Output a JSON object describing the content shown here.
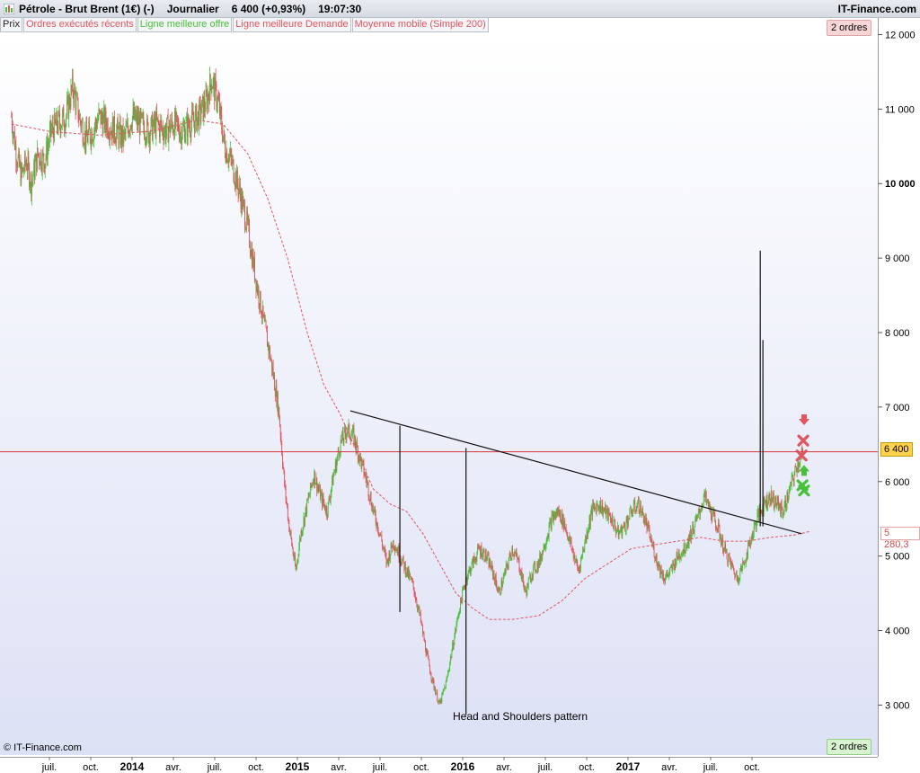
{
  "header": {
    "instrument": "Pétrole - Brut Brent (1€) (-)",
    "timeframe": "Journalier",
    "last_price": "6 400 (+0,93%)",
    "time": "19:07:30",
    "brand": "IT-Finance.com"
  },
  "legend": [
    {
      "label": "Prix",
      "color": "#222222"
    },
    {
      "label": "Ordres exécutés récents",
      "color": "#e05560"
    },
    {
      "label": "Ligne meilleure offre",
      "color": "#48c13a"
    },
    {
      "label": "Ligne meilleure Demande",
      "color": "#e05560"
    },
    {
      "label": "Moyenne mobile (Simple 200)",
      "color": "#e05560"
    }
  ],
  "badges": {
    "top": "2 ordres",
    "bottom": "2 ordres"
  },
  "copyright": "© IT-Finance.com",
  "annotation": "Head and Shoulders pattern",
  "price_flag": "6 400",
  "ma_flag": "5 280,3",
  "colors": {
    "up": "#48c13a",
    "down": "#e05560",
    "ma": "#e05560",
    "price_line": "#d9363e",
    "trend": "#111111"
  },
  "icons": {
    "chart": "chart-icon",
    "arrow_down": "arrow-down-icon",
    "order_x": "x-marker-icon",
    "arrow_up": "arrow-up-icon"
  },
  "chart_data": {
    "type": "candlestick",
    "y_axis": {
      "ticks": [
        "3 000",
        "4 000",
        "5 000",
        "6 000",
        "7 000",
        "8 000",
        "9 000",
        "10 000",
        "11 000",
        "12 000"
      ],
      "tick_values": [
        3000,
        4000,
        5000,
        6000,
        7000,
        8000,
        9000,
        10000,
        11000,
        12000
      ],
      "bold": [
        10000
      ],
      "range": [
        2450,
        12030
      ]
    },
    "x_axis": {
      "labels": [
        {
          "t": 0.0,
          "text": "juil."
        },
        {
          "t": 0.25,
          "text": "oct."
        },
        {
          "t": 0.5,
          "text": "2014",
          "bold": true
        },
        {
          "t": 0.75,
          "text": "avr."
        },
        {
          "t": 1.0,
          "text": "juil."
        },
        {
          "t": 1.25,
          "text": "oct."
        },
        {
          "t": 1.5,
          "text": "2015",
          "bold": true
        },
        {
          "t": 1.75,
          "text": "avr."
        },
        {
          "t": 2.0,
          "text": "juil."
        },
        {
          "t": 2.25,
          "text": "oct."
        },
        {
          "t": 2.5,
          "text": "2016",
          "bold": true
        },
        {
          "t": 2.75,
          "text": "avr."
        },
        {
          "t": 3.0,
          "text": "juil."
        },
        {
          "t": 3.25,
          "text": "oct."
        },
        {
          "t": 3.5,
          "text": "2017",
          "bold": true
        },
        {
          "t": 3.75,
          "text": "avr."
        },
        {
          "t": 4.0,
          "text": "juil."
        },
        {
          "t": 4.25,
          "text": "oct."
        }
      ]
    },
    "close_path": [
      [
        -0.23,
        10900
      ],
      [
        -0.2,
        10400
      ],
      [
        -0.17,
        10100
      ],
      [
        -0.14,
        10300
      ],
      [
        -0.11,
        10000
      ],
      [
        -0.07,
        10400
      ],
      [
        -0.03,
        10300
      ],
      [
        0.01,
        10700
      ],
      [
        0.05,
        10800
      ],
      [
        0.1,
        10900
      ],
      [
        0.14,
        11300
      ],
      [
        0.18,
        10900
      ],
      [
        0.22,
        10600
      ],
      [
        0.26,
        10700
      ],
      [
        0.3,
        10900
      ],
      [
        0.35,
        10800
      ],
      [
        0.4,
        10700
      ],
      [
        0.45,
        10600
      ],
      [
        0.5,
        10900
      ],
      [
        0.55,
        10800
      ],
      [
        0.6,
        10700
      ],
      [
        0.65,
        10800
      ],
      [
        0.7,
        10700
      ],
      [
        0.75,
        10800
      ],
      [
        0.8,
        10700
      ],
      [
        0.85,
        10800
      ],
      [
        0.9,
        10900
      ],
      [
        0.95,
        11100
      ],
      [
        0.98,
        11400
      ],
      [
        1.02,
        11100
      ],
      [
        1.06,
        10500
      ],
      [
        1.1,
        10300
      ],
      [
        1.15,
        9900
      ],
      [
        1.2,
        9400
      ],
      [
        1.25,
        8700
      ],
      [
        1.3,
        8100
      ],
      [
        1.35,
        7500
      ],
      [
        1.39,
        6900
      ],
      [
        1.42,
        6000
      ],
      [
        1.45,
        5400
      ],
      [
        1.49,
        4800
      ],
      [
        1.52,
        5300
      ],
      [
        1.56,
        5700
      ],
      [
        1.6,
        6100
      ],
      [
        1.64,
        5800
      ],
      [
        1.68,
        5600
      ],
      [
        1.72,
        6100
      ],
      [
        1.76,
        6500
      ],
      [
        1.8,
        6700
      ],
      [
        1.84,
        6600
      ],
      [
        1.88,
        6300
      ],
      [
        1.92,
        6000
      ],
      [
        1.96,
        5600
      ],
      [
        2.0,
        5300
      ],
      [
        2.04,
        4900
      ],
      [
        2.08,
        5200
      ],
      [
        2.12,
        5000
      ],
      [
        2.16,
        4800
      ],
      [
        2.2,
        4600
      ],
      [
        2.24,
        4200
      ],
      [
        2.28,
        3700
      ],
      [
        2.32,
        3300
      ],
      [
        2.36,
        3000
      ],
      [
        2.4,
        3300
      ],
      [
        2.44,
        3800
      ],
      [
        2.48,
        4300
      ],
      [
        2.52,
        4700
      ],
      [
        2.56,
        4900
      ],
      [
        2.6,
        5100
      ],
      [
        2.64,
        5000
      ],
      [
        2.68,
        4800
      ],
      [
        2.72,
        4500
      ],
      [
        2.76,
        4800
      ],
      [
        2.8,
        5100
      ],
      [
        2.84,
        4900
      ],
      [
        2.88,
        4500
      ],
      [
        2.92,
        4800
      ],
      [
        2.96,
        4900
      ],
      [
        3.0,
        5200
      ],
      [
        3.04,
        5500
      ],
      [
        3.08,
        5600
      ],
      [
        3.12,
        5400
      ],
      [
        3.16,
        5100
      ],
      [
        3.2,
        4800
      ],
      [
        3.24,
        5200
      ],
      [
        3.28,
        5600
      ],
      [
        3.32,
        5700
      ],
      [
        3.36,
        5600
      ],
      [
        3.4,
        5500
      ],
      [
        3.44,
        5300
      ],
      [
        3.48,
        5400
      ],
      [
        3.52,
        5600
      ],
      [
        3.56,
        5700
      ],
      [
        3.6,
        5500
      ],
      [
        3.64,
        5200
      ],
      [
        3.68,
        4900
      ],
      [
        3.72,
        4700
      ],
      [
        3.76,
        4800
      ],
      [
        3.8,
        5000
      ],
      [
        3.84,
        5100
      ],
      [
        3.88,
        5300
      ],
      [
        3.92,
        5500
      ],
      [
        3.96,
        5800
      ],
      [
        4.0,
        5600
      ],
      [
        4.04,
        5400
      ],
      [
        4.08,
        5100
      ],
      [
        4.12,
        4900
      ],
      [
        4.16,
        4700
      ],
      [
        4.2,
        4900
      ],
      [
        4.24,
        5200
      ],
      [
        4.28,
        5500
      ],
      [
        4.32,
        5700
      ],
      [
        4.36,
        5800
      ],
      [
        4.4,
        5700
      ],
      [
        4.44,
        5600
      ],
      [
        4.48,
        5900
      ],
      [
        4.52,
        6200
      ],
      [
        4.56,
        6400
      ]
    ],
    "moving_average": [
      [
        -0.23,
        10800
      ],
      [
        0.0,
        10700
      ],
      [
        0.3,
        10650
      ],
      [
        0.6,
        10700
      ],
      [
        0.9,
        10850
      ],
      [
        1.05,
        10800
      ],
      [
        1.2,
        10400
      ],
      [
        1.32,
        9800
      ],
      [
        1.44,
        9000
      ],
      [
        1.56,
        8000
      ],
      [
        1.66,
        7300
      ],
      [
        1.76,
        6900
      ],
      [
        1.86,
        6400
      ],
      [
        1.96,
        5900
      ],
      [
        2.06,
        5700
      ],
      [
        2.16,
        5600
      ],
      [
        2.26,
        5300
      ],
      [
        2.36,
        4900
      ],
      [
        2.46,
        4500
      ],
      [
        2.56,
        4300
      ],
      [
        2.66,
        4150
      ],
      [
        2.8,
        4150
      ],
      [
        2.96,
        4200
      ],
      [
        3.1,
        4400
      ],
      [
        3.24,
        4700
      ],
      [
        3.38,
        4900
      ],
      [
        3.52,
        5100
      ],
      [
        3.66,
        5150
      ],
      [
        3.8,
        5200
      ],
      [
        3.94,
        5250
      ],
      [
        4.08,
        5200
      ],
      [
        4.22,
        5200
      ],
      [
        4.36,
        5250
      ],
      [
        4.5,
        5280
      ],
      [
        4.6,
        5330
      ]
    ],
    "horizontal_line": 6400,
    "trendline": [
      [
        1.82,
        6950
      ],
      [
        4.55,
        5300
      ]
    ],
    "vertical_markers": [
      {
        "t": 2.12,
        "top": 6750,
        "bottom": 4250
      },
      {
        "t": 2.52,
        "top": 6450,
        "bottom": 2870
      },
      {
        "t": 4.3,
        "top": 9100,
        "bottom": 5400
      },
      {
        "t": 4.316,
        "top": 7900,
        "bottom": 5400
      }
    ],
    "order_markers": [
      {
        "kind": "arrow-down",
        "t": 4.565,
        "v": 6830,
        "color": "#e05560"
      },
      {
        "kind": "x",
        "t": 4.56,
        "v": 6550,
        "color": "#e05560"
      },
      {
        "kind": "x",
        "t": 4.55,
        "v": 6350,
        "color": "#e05560"
      },
      {
        "kind": "arrow-up",
        "t": 4.565,
        "v": 6150,
        "color": "#48c13a"
      },
      {
        "kind": "x",
        "t": 4.555,
        "v": 5950,
        "color": "#48c13a"
      },
      {
        "kind": "x",
        "t": 4.565,
        "v": 5880,
        "color": "#48c13a"
      }
    ]
  }
}
